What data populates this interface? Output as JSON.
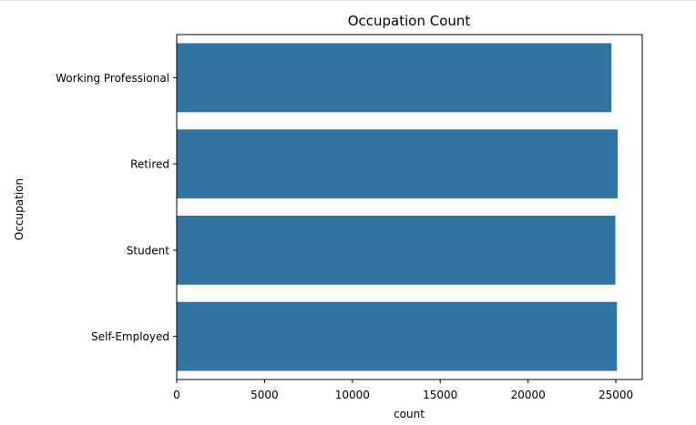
{
  "chart_data": {
    "type": "bar",
    "orientation": "horizontal",
    "title": "Occupation Count",
    "xlabel": "count",
    "ylabel": "Occupation",
    "categories": [
      "Working Professional",
      "Retired",
      "Student",
      "Self-Employed"
    ],
    "values": [
      24750,
      25100,
      24970,
      25060
    ],
    "xlim": [
      0,
      26500
    ],
    "xticks": [
      0,
      5000,
      10000,
      15000,
      20000,
      25000
    ],
    "grid": false,
    "legend": "none",
    "bar_color": "#3274a1"
  }
}
